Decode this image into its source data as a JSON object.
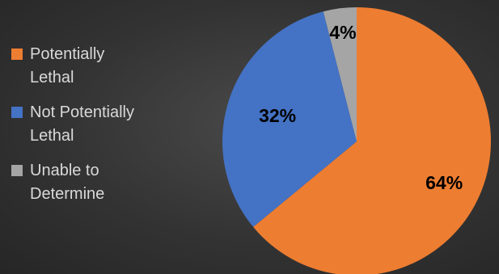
{
  "chart_data": {
    "type": "pie",
    "categories": [
      "Potentially Lethal",
      "Not Potentially Lethal",
      "Unable to Determine"
    ],
    "values": [
      64,
      32,
      4
    ],
    "data_labels": [
      "64%",
      "32%",
      "4%"
    ],
    "colors": [
      "#ED7D31",
      "#4472C4",
      "#A5A5A5"
    ],
    "legend": {
      "placement": "left",
      "entries": [
        "Potentially\nLethal",
        "Not Potentially\nLethal",
        "Unable to\nDetermine"
      ]
    },
    "start_angle_deg": 0,
    "direction": "clockwise"
  },
  "style": {
    "background": "#333333",
    "legend_text_color": "#d9d9d9",
    "label_color": "#000000"
  }
}
